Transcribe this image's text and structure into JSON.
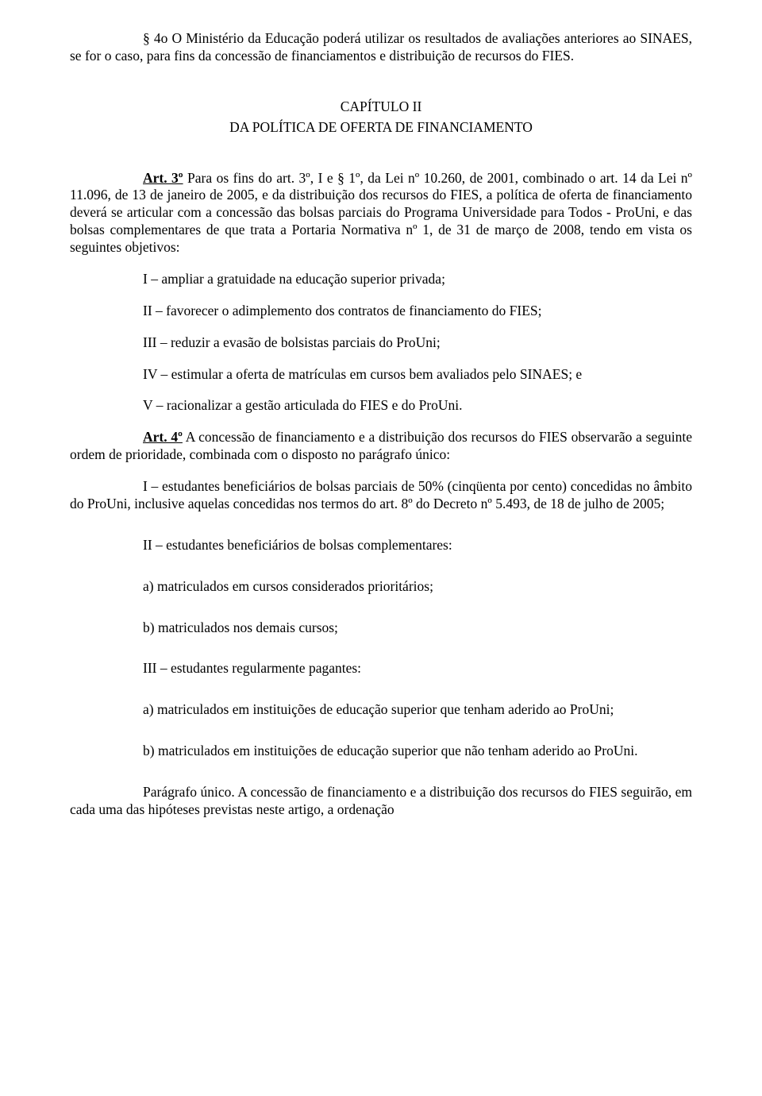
{
  "p1": "§ 4o O Ministério da Educação poderá utilizar os resultados de avaliações anteriores ao SINAES, se for o caso, para fins da concessão de financiamentos e distribuição de recursos do FIES.",
  "chapter": {
    "num": "CAPÍTULO II",
    "title": "DA POLÍTICA DE OFERTA DE FINANCIAMENTO"
  },
  "art3": {
    "label": "Art. 3º",
    "text1": " Para os fins do art. 3º, I e § 1º, da Lei nº 10.260, de 2001, combinado o art. 14 da Lei nº 11.096, de 13 de janeiro de 2005, e da distribuição dos recursos do FIES, a política de oferta de financiamento deverá se articular com a concessão das bolsas parciais do Programa Universidade para Todos - ProUni, e das bolsas complementares de que trata a Portaria Normativa nº 1, de 31 de março de 2008, tendo em vista os seguintes objetivos:",
    "i1": "I – ampliar a gratuidade na educação superior privada;",
    "i2": "II – favorecer o adimplemento dos contratos de financiamento do FIES;",
    "i3": "III – reduzir a evasão de bolsistas parciais do ProUni;",
    "i4": "IV – estimular a oferta de matrículas em cursos bem avaliados pelo SINAES; e",
    "i5": "V – racionalizar a gestão articulada do FIES e do ProUni."
  },
  "art4": {
    "label": "Art. 4º",
    "text1": " A concessão de financiamento e a distribuição dos recursos do FIES observarão a seguinte ordem de prioridade, combinada com o disposto no parágrafo único:",
    "i1": "I – estudantes beneficiários de bolsas parciais de 50% (cinqüenta por cento) concedidas no âmbito do ProUni, inclusive aquelas concedidas nos termos do art. 8º do Decreto nº 5.493, de 18 de julho de 2005;",
    "i2": "II – estudantes beneficiários de bolsas complementares:",
    "i2a": "a) matriculados em cursos considerados prioritários;",
    "i2b": "b) matriculados nos demais cursos;",
    "i3": "III – estudantes regularmente pagantes:",
    "i3a": "a) matriculados em instituições de educação superior que tenham aderido ao ProUni;",
    "i3b": "b) matriculados em instituições de educação superior que não tenham aderido ao ProUni.",
    "pu": "Parágrafo único. A concessão de financiamento e a distribuição dos recursos do FIES seguirão, em cada uma das hipóteses previstas neste artigo, a ordenação"
  }
}
